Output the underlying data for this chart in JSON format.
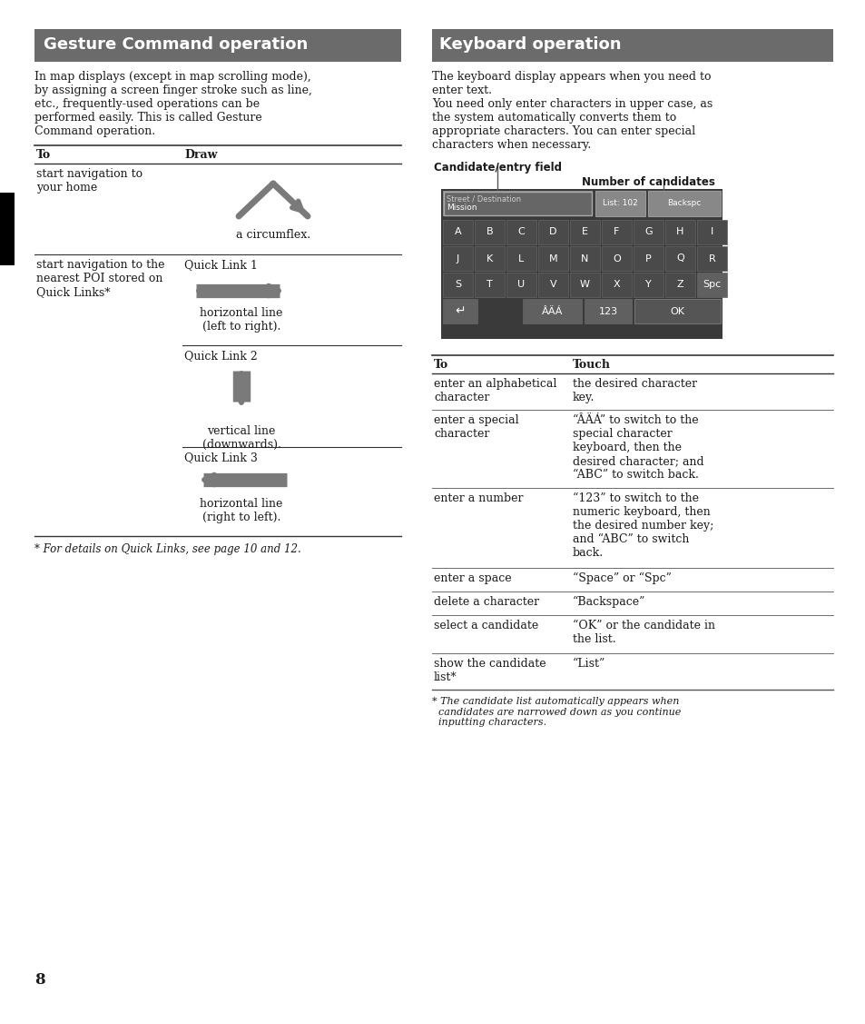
{
  "page_bg": "#ffffff",
  "header_bg": "#6b6b6b",
  "header_text_color": "#ffffff",
  "body_text_color": "#1a1a1a",
  "line_color": "#333333",
  "arrow_color": "#7a7a7a",
  "left_header": "Gesture Command operation",
  "right_header": "Keyboard operation",
  "left_body_text": "In map displays (except in map scrolling mode),\nby assigning a screen finger stroke such as line,\netc., frequently-used operations can be\nperformed easily. This is called Gesture\nCommand operation.",
  "right_body_text": "The keyboard display appears when you need to\nenter text.\nYou need only enter characters in upper case, as\nthe system automatically converts them to\nappropriate characters. You can enter special\ncharacters when necessary.",
  "table_left_col_header": "To",
  "table_left_col_draw_header": "Draw",
  "gesture_rows": [
    {
      "to_text": "start navigation to\nyour home",
      "draw_label": "",
      "draw_desc": "a circumflex.",
      "arrow_type": "circumflex"
    },
    {
      "to_text": "start navigation to the\nnearest POI stored on\nQuick Links*",
      "draw_label": "Quick Link 1",
      "draw_desc": "horizontal line\n(left to right).",
      "arrow_type": "right"
    },
    {
      "to_text": "",
      "draw_label": "Quick Link 2",
      "draw_desc": "vertical line\n(downwards).",
      "arrow_type": "down"
    },
    {
      "to_text": "",
      "draw_label": "Quick Link 3",
      "draw_desc": "horizontal line\n(right to left).",
      "arrow_type": "left"
    }
  ],
  "footnote_left": "* For details on Quick Links, see page 10 and 12.",
  "kb_table_to_header": "To",
  "kb_table_touch_header": "Touch",
  "kb_rows": [
    {
      "to": "enter an alphabetical\ncharacter",
      "touch": "the desired character\nkey."
    },
    {
      "to": "enter a special\ncharacter",
      "touch": "“ÂÄÁ” to switch to the\nspecial character\nkeyboard, then the\ndesired character; and\n“ABC” to switch back."
    },
    {
      "to": "enter a number",
      "touch": "“123” to switch to the\nnumeric keyboard, then\nthe desired number key;\nand “ABC” to switch\nback."
    },
    {
      "to": "enter a space",
      "touch": "“Space” or “Spc”"
    },
    {
      "to": "delete a character",
      "touch": "“Backspace”"
    },
    {
      "to": "select a candidate",
      "touch": "“OK” or the candidate in\nthe list."
    },
    {
      "to": "show the candidate\nlist*",
      "touch": "“List”"
    }
  ],
  "kb_footnote": "* The candidate list automatically appears when\n  candidates are narrowed down as you continue\n  inputting characters.",
  "page_number": "8",
  "kb_keys_row1": [
    "A",
    "B",
    "C",
    "D",
    "E",
    "F",
    "G",
    "H",
    "I"
  ],
  "kb_keys_row2": [
    "J",
    "K",
    "L",
    "M",
    "N",
    "O",
    "P",
    "Q",
    "R"
  ],
  "kb_keys_row3": [
    "S",
    "T",
    "U",
    "V",
    "W",
    "X",
    "Y",
    "Z",
    "Spc"
  ],
  "kb_dark_bg": "#3a3a3a",
  "kb_key_bg": "#4a4a4a",
  "kb_special_key_bg": "#606060",
  "kb_ok_bg": "#555555",
  "kb_text_color": "#ffffff",
  "kb_border_color": "#666666",
  "kb_entry_bg": "#555555",
  "kb_entry_text": "#cccccc",
  "kb_list_btn_bg": "#777777",
  "kb_backspc_btn_bg": "#888888"
}
